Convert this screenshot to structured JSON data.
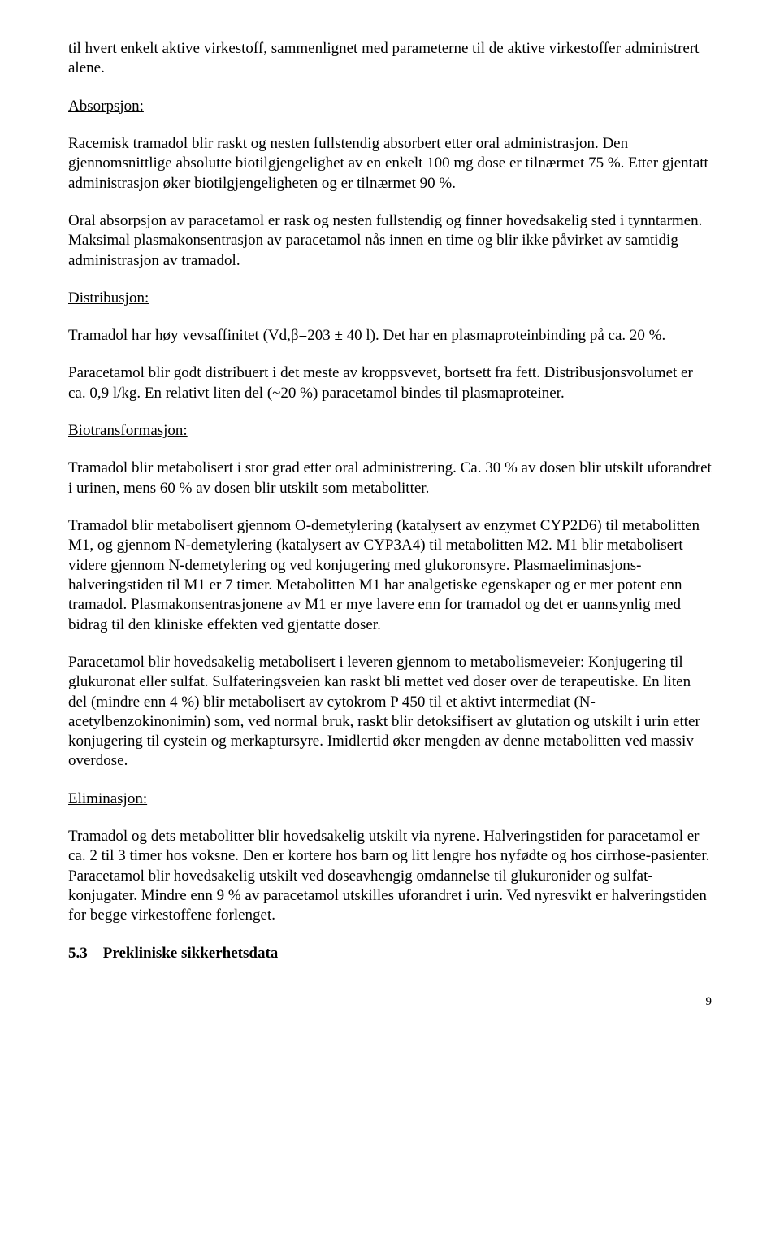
{
  "para1": "til hvert enkelt aktive virkestoff, sammenlignet med parameterne til de aktive virkestoffer administrert alene.",
  "absorption_header": "Absorpsjon:",
  "para2": "Racemisk tramadol blir raskt og nesten fullstendig absorbert etter oral administrasjon. Den gjennomsnittlige absolutte biotilgjengelighet av en enkelt 100 mg dose er tilnærmet 75 %. Etter gjentatt administrasjon øker biotilgjengeligheten og er tilnærmet 90 %.",
  "para3": "Oral absorpsjon av paracetamol er rask og nesten fullstendig og finner hovedsakelig sted i tynntarmen. Maksimal plasmakonsentrasjon av paracetamol nås innen en time og blir ikke påvirket av samtidig administrasjon av tramadol.",
  "distribution_header": "Distribusjon:",
  "para4": "Tramadol har høy vevsaffinitet (Vd,β=203 ± 40 l). Det har en plasmaproteinbinding på ca. 20 %.",
  "para5": "Paracetamol blir godt distribuert i det meste av kroppsvevet, bortsett fra fett. Distribusjonsvolumet er ca. 0,9 l/kg. En relativt liten del (~20 %) paracetamol bindes til plasmaproteiner.",
  "biotrans_header": "Biotransformasjon:",
  "para6": "Tramadol blir metabolisert i stor grad etter oral administrering. Ca. 30 % av dosen blir utskilt uforandret i urinen, mens 60 % av dosen blir utskilt som metabolitter.",
  "para7": "Tramadol blir metabolisert gjennom O-demetylering (katalysert av enzymet CYP2D6) til metabolitten M1, og gjennom N-demetylering (katalysert av CYP3A4) til metabolitten M2. M1 blir metabolisert videre gjennom N-demetylering og ved konjugering med glukoronsyre. Plasmaeliminasjons-halveringstiden til M1 er 7 timer. Metabolitten M1 har analgetiske egenskaper og er mer potent enn tramadol. Plasmakonsentrasjonene av M1 er mye lavere enn for tramadol og det er uannsynlig med bidrag til den kliniske effekten ved gjentatte doser.",
  "para8": "Paracetamol blir hovedsakelig metabolisert i leveren gjennom to metabolismeveier: Konjugering til glukuronat eller sulfat. Sulfateringsveien kan raskt bli mettet ved doser over de terapeutiske. En liten del (mindre enn 4 %) blir metabolisert av cytokrom P 450 til et aktivt intermediat (N-acetylbenzokinonimin) som, ved normal bruk, raskt blir detoksifisert av glutation og utskilt i urin etter konjugering til cystein og merkaptursyre. Imidlertid øker mengden av denne metabolitten ved massiv overdose.",
  "elimination_header": "Eliminasjon:",
  "para9": "Tramadol og dets metabolitter blir hovedsakelig utskilt via nyrene. Halveringstiden for paracetamol er ca. 2 til 3 timer hos voksne. Den er kortere hos barn og litt lengre hos nyfødte og hos cirrhose-pasienter. Paracetamol blir hovedsakelig utskilt ved doseavhengig omdannelse til glukuronider og sulfat-konjugater. Mindre enn 9 % av paracetamol utskilles uforandret i urin. Ved nyresvikt er halveringstiden for begge virkestoffene forlenget.",
  "section_number": "5.3",
  "section_title": "Prekliniske sikkerhetsdata",
  "page_number": "9"
}
